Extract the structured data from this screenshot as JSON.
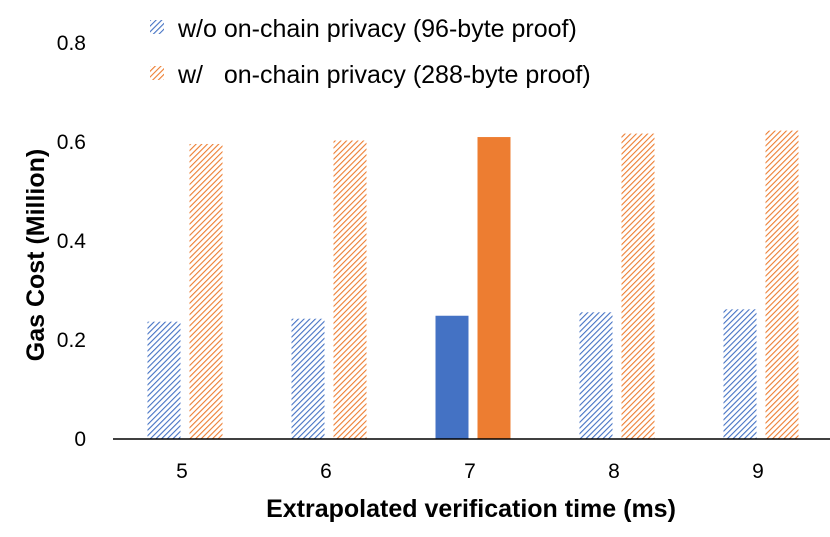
{
  "chart_data": {
    "type": "bar",
    "xlabel": "Extrapolated verification time (ms)",
    "ylabel": "Gas Cost (Million)",
    "categories": [
      "5",
      "6",
      "7",
      "8",
      "9"
    ],
    "ylim": [
      0,
      0.8
    ],
    "yticks": [
      "0",
      "0.2",
      "0.4",
      "0.6",
      "0.8"
    ],
    "grid": false,
    "legend_position": "top",
    "highlight_category": "7",
    "series": [
      {
        "name": "w/o on-chain privacy (96-byte proof)",
        "color": "#4472C4",
        "values": [
          0.237,
          0.243,
          0.249,
          0.256,
          0.262
        ]
      },
      {
        "name": "w/   on-chain privacy (288-byte proof)",
        "color": "#ED7D31",
        "values": [
          0.596,
          0.603,
          0.61,
          0.617,
          0.623
        ]
      }
    ]
  }
}
